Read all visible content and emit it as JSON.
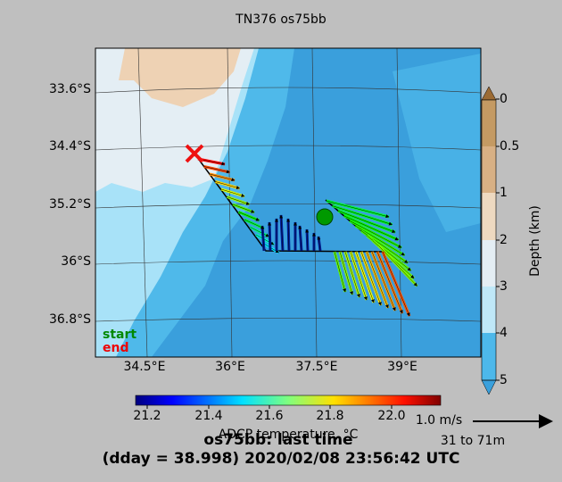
{
  "title": "TN376 os75bb",
  "map": {
    "lat_labels": [
      "33.6°S",
      "34.4°S",
      "35.2°S",
      "36°S",
      "36.8°S"
    ],
    "lon_labels": [
      "34.5°E",
      "36°E",
      "37.5°E",
      "39°E"
    ],
    "legend": {
      "start": "start",
      "end": "end"
    }
  },
  "depth_colorbar": {
    "label": "Depth (km)",
    "ticks": [
      "0",
      "0.5",
      "1",
      "2",
      "3",
      "4",
      "5"
    ]
  },
  "temperature_colorbar": {
    "label": "ADCP temperature, °C",
    "ticks": [
      "21.2",
      "21.4",
      "21.6",
      "21.8",
      "22.0"
    ]
  },
  "scale": {
    "speed": "1.0 m/s",
    "depth_range": "31 to 71m"
  },
  "footer": {
    "line1": "os75bb: last time",
    "line2": "(dday = 38.998) 2020/02/08 23:56:42 UTC"
  }
}
